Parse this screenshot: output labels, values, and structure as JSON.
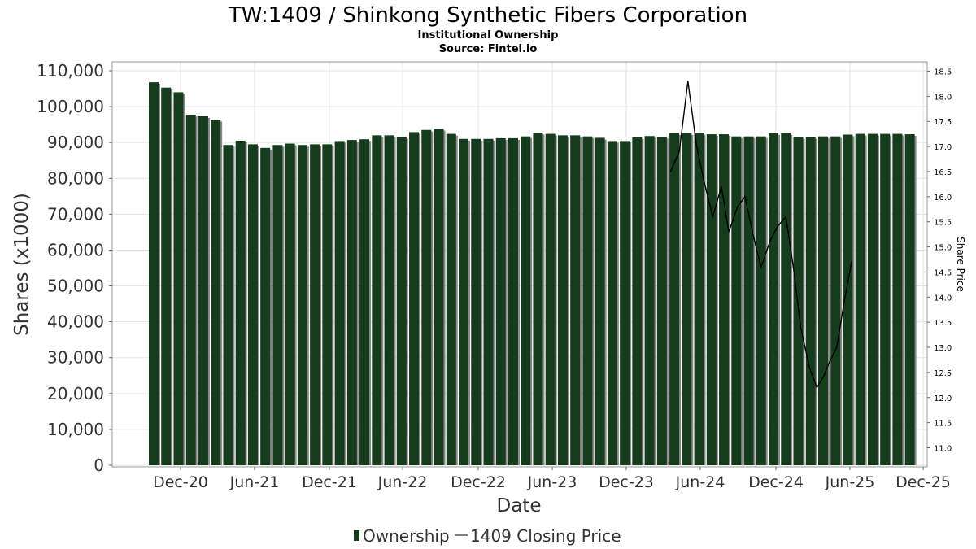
{
  "chart_data": {
    "type": "bar",
    "title": "TW:1409 / Shinkong Synthetic Fibers Corporation",
    "subtitle": "Institutional Ownership",
    "source": "Source: Fintel.io",
    "xlabel": "Date",
    "ylabel": "Shares (x1000)",
    "y2label": "Share Price",
    "ylim": [
      0,
      110000
    ],
    "y2lim": [
      10.6,
      18.6
    ],
    "yticks": [
      "0",
      "10,000",
      "20,000",
      "30,000",
      "40,000",
      "50,000",
      "60,000",
      "70,000",
      "80,000",
      "90,000",
      "100,000",
      "110,000"
    ],
    "y2ticks": [
      "11.0",
      "11.5",
      "12.0",
      "12.5",
      "13.0",
      "13.5",
      "14.0",
      "14.5",
      "15.0",
      "15.5",
      "16.0",
      "16.5",
      "17.0",
      "17.5",
      "18.0",
      "18.5"
    ],
    "xticks": [
      "Dec-20",
      "Jun-21",
      "Dec-21",
      "Jun-22",
      "Dec-22",
      "Jun-23",
      "Dec-23",
      "Jun-24",
      "Dec-24",
      "Jun-25",
      "Dec-25"
    ],
    "grid": true,
    "legend_position": "bottom",
    "series": [
      {
        "name": "Ownership",
        "type": "bar",
        "color": "#163c1e",
        "values": [
          106800,
          105300,
          104000,
          97700,
          97300,
          96300,
          89300,
          90500,
          89500,
          88500,
          89300,
          89700,
          89300,
          89500,
          89500,
          90400,
          90700,
          90900,
          92000,
          92000,
          91500,
          92900,
          93500,
          93800,
          92400,
          91000,
          91000,
          91000,
          91200,
          91200,
          91700,
          92700,
          92400,
          92000,
          92000,
          91700,
          91300,
          90400,
          90400,
          91400,
          91800,
          91600,
          92600,
          92600,
          92600,
          92300,
          92300,
          91700,
          91700,
          91700,
          92600,
          92600,
          91500,
          91500,
          91700,
          91700,
          92200,
          92400,
          92400,
          92400,
          92400,
          92300
        ]
      },
      {
        "name": "1409 Closing Price",
        "type": "line",
        "color": "#000000",
        "points": [
          [
            41.7,
            16.5
          ],
          [
            42.4,
            16.9
          ],
          [
            43.1,
            18.3
          ],
          [
            43.8,
            17.0
          ],
          [
            44.4,
            16.3
          ],
          [
            45.1,
            15.6
          ],
          [
            45.8,
            16.2
          ],
          [
            46.4,
            15.3
          ],
          [
            47.1,
            15.8
          ],
          [
            47.7,
            16.0
          ],
          [
            48.4,
            15.2
          ],
          [
            49.0,
            14.6
          ],
          [
            49.7,
            15.1
          ],
          [
            50.3,
            15.4
          ],
          [
            51.0,
            15.6
          ],
          [
            51.6,
            14.6
          ],
          [
            52.2,
            13.4
          ],
          [
            52.9,
            12.6
          ],
          [
            53.5,
            12.2
          ],
          [
            54.0,
            12.4
          ],
          [
            54.5,
            12.7
          ],
          [
            55.1,
            13.0
          ],
          [
            55.7,
            13.9
          ],
          [
            56.3,
            14.7
          ]
        ]
      }
    ]
  }
}
